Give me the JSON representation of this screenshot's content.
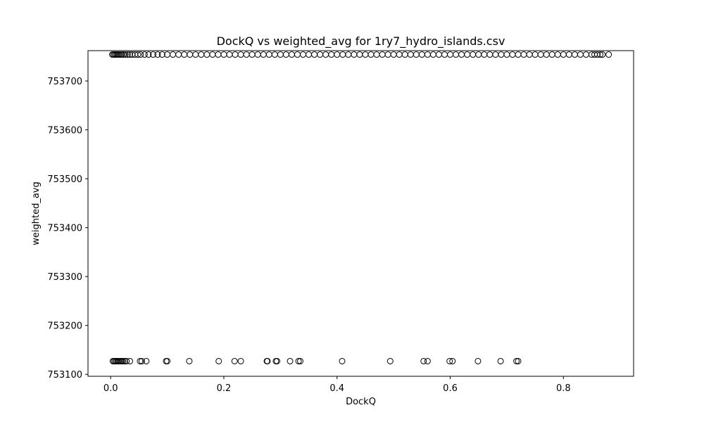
{
  "chart_data": {
    "type": "scatter",
    "title": "DockQ vs weighted_avg for 1ry7_hydro_islands.csv",
    "xlabel": "DockQ",
    "ylabel": "weighted_avg",
    "xlim": [
      -0.04,
      0.924
    ],
    "ylim": [
      753096,
      753762
    ],
    "xticks": [
      0.0,
      0.2,
      0.4,
      0.6,
      0.8
    ],
    "xtick_labels": [
      "0.0",
      "0.2",
      "0.4",
      "0.6",
      "0.8"
    ],
    "yticks": [
      753100,
      753200,
      753300,
      753400,
      753500,
      753600,
      753700
    ],
    "ytick_labels": [
      "753100",
      "753200",
      "753300",
      "753400",
      "753500",
      "753600",
      "753700"
    ],
    "grid": false,
    "marker": "open-circle",
    "marker_color": "#000000",
    "series": [
      {
        "x": [
          0.003,
          0.005,
          0.007,
          0.009,
          0.011,
          0.013,
          0.015,
          0.018,
          0.02,
          0.023,
          0.026,
          0.03,
          0.034,
          0.038,
          0.043,
          0.048,
          0.053,
          0.06,
          0.067,
          0.075,
          0.083,
          0.091,
          0.1,
          0.11,
          0.12,
          0.13,
          0.14,
          0.15,
          0.16,
          0.17,
          0.18,
          0.19,
          0.2,
          0.21,
          0.22,
          0.23,
          0.24,
          0.25,
          0.26,
          0.27,
          0.28,
          0.29,
          0.3,
          0.31,
          0.32,
          0.33,
          0.34,
          0.35,
          0.36,
          0.37,
          0.38,
          0.39,
          0.4,
          0.41,
          0.42,
          0.43,
          0.44,
          0.45,
          0.46,
          0.47,
          0.48,
          0.49,
          0.5,
          0.51,
          0.52,
          0.53,
          0.54,
          0.55,
          0.56,
          0.57,
          0.58,
          0.59,
          0.6,
          0.61,
          0.62,
          0.63,
          0.64,
          0.65,
          0.66,
          0.67,
          0.68,
          0.69,
          0.7,
          0.71,
          0.72,
          0.73,
          0.74,
          0.75,
          0.76,
          0.77,
          0.78,
          0.79,
          0.8,
          0.81,
          0.82,
          0.83,
          0.84,
          0.85,
          0.855,
          0.86,
          0.865,
          0.869,
          0.88
        ],
        "y": [
          753754,
          753754,
          753754,
          753754,
          753754,
          753754,
          753754,
          753754,
          753754,
          753754,
          753754,
          753754,
          753754,
          753754,
          753754,
          753754,
          753754,
          753754,
          753754,
          753754,
          753754,
          753754,
          753754,
          753754,
          753754,
          753754,
          753754,
          753754,
          753754,
          753754,
          753754,
          753754,
          753754,
          753754,
          753754,
          753754,
          753754,
          753754,
          753754,
          753754,
          753754,
          753754,
          753754,
          753754,
          753754,
          753754,
          753754,
          753754,
          753754,
          753754,
          753754,
          753754,
          753754,
          753754,
          753754,
          753754,
          753754,
          753754,
          753754,
          753754,
          753754,
          753754,
          753754,
          753754,
          753754,
          753754,
          753754,
          753754,
          753754,
          753754,
          753754,
          753754,
          753754,
          753754,
          753754,
          753754,
          753754,
          753754,
          753754,
          753754,
          753754,
          753754,
          753754,
          753754,
          753754,
          753754,
          753754,
          753754,
          753754,
          753754,
          753754,
          753754,
          753754,
          753754,
          753754,
          753754,
          753754,
          753754,
          753754,
          753754,
          753754,
          753754,
          753754
        ]
      },
      {
        "x": [
          0.004,
          0.006,
          0.008,
          0.01,
          0.012,
          0.014,
          0.016,
          0.018,
          0.02,
          0.022,
          0.025,
          0.028,
          0.034,
          0.052,
          0.055,
          0.063,
          0.098,
          0.1,
          0.139,
          0.191,
          0.219,
          0.23,
          0.276,
          0.277,
          0.292,
          0.294,
          0.317,
          0.332,
          0.335,
          0.409,
          0.494,
          0.553,
          0.56,
          0.599,
          0.604,
          0.649,
          0.689,
          0.717,
          0.72
        ],
        "y": [
          753127,
          753127,
          753127,
          753127,
          753127,
          753127,
          753127,
          753127,
          753127,
          753127,
          753127,
          753127,
          753127,
          753127,
          753127,
          753127,
          753127,
          753127,
          753127,
          753127,
          753127,
          753127,
          753127,
          753127,
          753127,
          753127,
          753127,
          753127,
          753127,
          753127,
          753127,
          753127,
          753127,
          753127,
          753127,
          753127,
          753127,
          753127,
          753127
        ]
      }
    ]
  }
}
